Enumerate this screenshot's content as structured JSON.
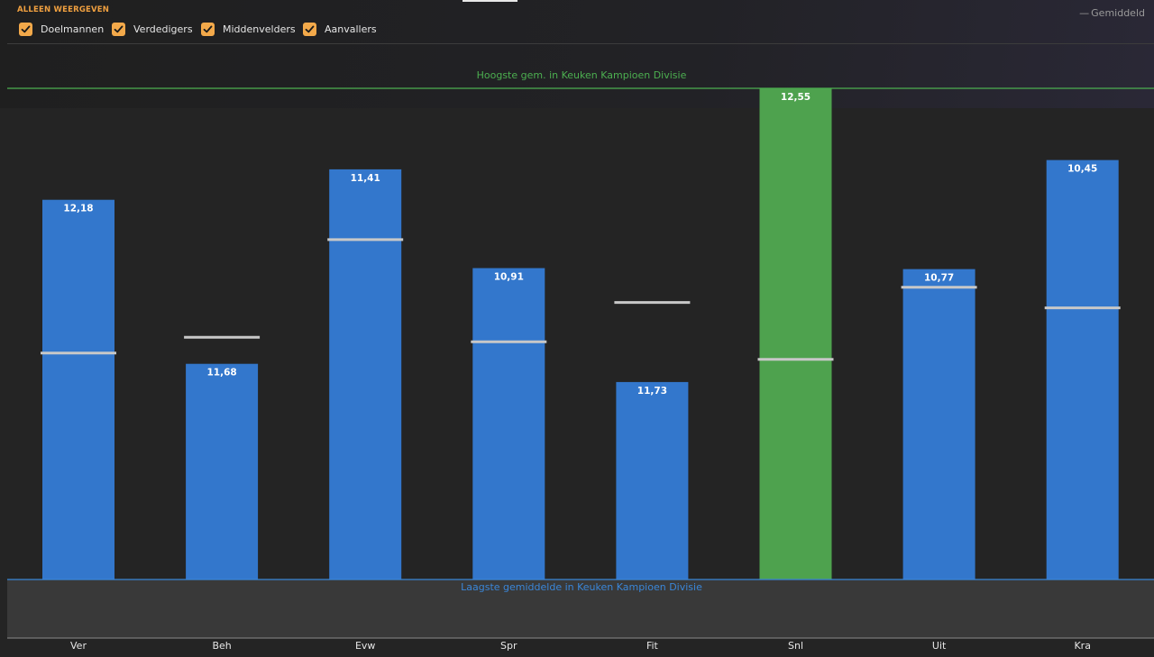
{
  "filter": {
    "title": "ALLEEN WEERGEVEN",
    "items": [
      {
        "label": "Doelmannen",
        "checked": true
      },
      {
        "label": "Verdedigers",
        "checked": true
      },
      {
        "label": "Middenvelders",
        "checked": true
      },
      {
        "label": "Aanvallers",
        "checked": true
      }
    ]
  },
  "legend": {
    "average_label": "Gemiddeld"
  },
  "colors": {
    "bar": "#3377cc",
    "bar_highlight": "#4ea24e",
    "average_marker": "#c8c8c8",
    "max_line": "#4caf50",
    "min_line": "#3a86d8",
    "checkbox": "#f3a94a"
  },
  "chart_data": {
    "type": "bar",
    "categories": [
      "Ver",
      "Beh",
      "Evw",
      "Spr",
      "Fit",
      "Snl",
      "Uit",
      "Kra"
    ],
    "value_labels": [
      "12,18",
      "11,68",
      "11,41",
      "10,91",
      "11,73",
      "12,55",
      "10,77",
      "10,45"
    ],
    "bar_fraction": [
      0.773,
      0.439,
      0.835,
      0.634,
      0.402,
      1.0,
      0.632,
      0.854
    ],
    "average_fraction": [
      0.461,
      0.493,
      0.692,
      0.484,
      0.564,
      0.448,
      0.595,
      0.553
    ],
    "highlight_index": 5,
    "max_line_label": "Hoogste gem. in Keuken Kampioen Divisie",
    "min_line_label": "Laagste gemiddelde in Keuken Kampioen Divisie"
  }
}
